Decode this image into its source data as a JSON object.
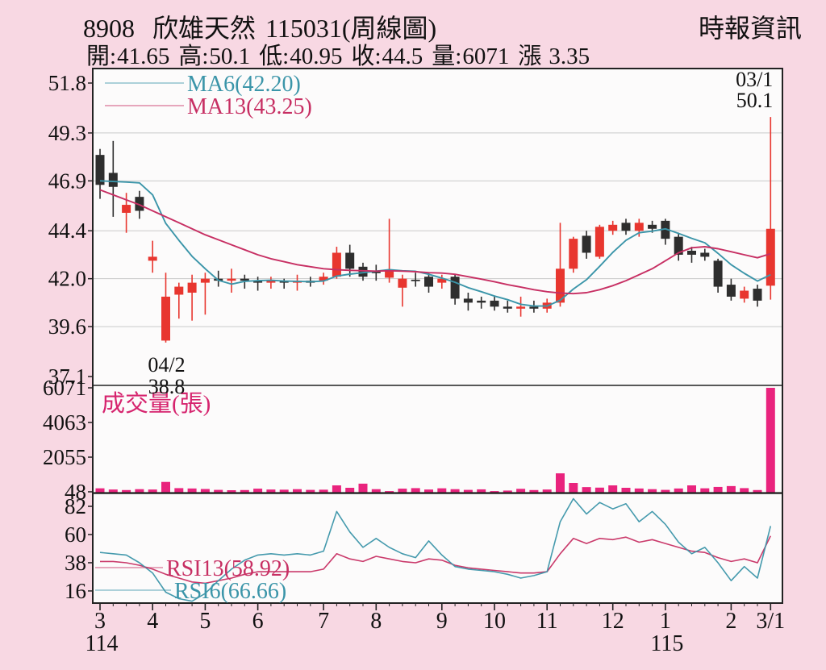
{
  "header": {
    "stock_id": "8908",
    "stock_name": "欣雄天然",
    "session_code": "115031",
    "chart_kind": "(周線圖)",
    "source": "時報資訊",
    "quote_fields": [
      {
        "label": "開:",
        "value": "41.65"
      },
      {
        "label": "高:",
        "value": "50.1"
      },
      {
        "label": "低:",
        "value": "40.95"
      },
      {
        "label": "收:",
        "value": "44.5"
      },
      {
        "label": "量:",
        "value": "6071"
      },
      {
        "label": "漲",
        "value": "3.35"
      }
    ]
  },
  "colors": {
    "background": "#f8d8e3",
    "panel": "#fcfbfb",
    "frame": "#222222",
    "grid": "#c9c9c9",
    "text": "#111111",
    "up": "#e8362f",
    "down": "#2e2e2e",
    "ma6": "#3b95a9",
    "ma13": "#c72f63",
    "volume_bar": "#e9237d",
    "volume_label": "#d6246e"
  },
  "chart_data": [
    {
      "type": "candlestick",
      "period": "weekly",
      "ylabel": "",
      "ylim": [
        37.1,
        51.8
      ],
      "y_ticks": [
        51.8,
        49.3,
        46.9,
        44.4,
        42.0,
        39.6,
        37.1
      ],
      "grid": true,
      "legend_position": "top-left",
      "candles": [
        [
          48.2,
          48.5,
          46.0,
          46.7
        ],
        [
          47.3,
          48.9,
          45.1,
          46.6
        ],
        [
          45.3,
          46.3,
          44.3,
          45.7
        ],
        [
          46.1,
          46.4,
          45.0,
          45.4
        ],
        [
          42.9,
          43.9,
          42.3,
          43.1
        ],
        [
          38.9,
          42.3,
          38.8,
          41.1
        ],
        [
          41.2,
          41.8,
          40.0,
          41.6
        ],
        [
          41.3,
          42.2,
          39.9,
          41.8
        ],
        [
          41.8,
          42.3,
          40.2,
          42.0
        ],
        [
          42.0,
          42.4,
          41.6,
          41.9
        ],
        [
          41.9,
          42.5,
          41.3,
          42.0
        ],
        [
          42.0,
          42.2,
          41.5,
          41.9
        ],
        [
          41.9,
          42.1,
          41.4,
          41.8
        ],
        [
          41.8,
          42.1,
          41.5,
          41.9
        ],
        [
          41.9,
          42.0,
          41.5,
          41.8
        ],
        [
          41.8,
          42.2,
          41.4,
          41.9
        ],
        [
          41.9,
          42.1,
          41.6,
          41.8
        ],
        [
          41.9,
          42.3,
          41.7,
          42.1
        ],
        [
          42.1,
          43.6,
          42.0,
          43.3
        ],
        [
          43.3,
          43.7,
          42.1,
          42.5
        ],
        [
          42.6,
          42.8,
          41.9,
          42.1
        ],
        [
          42.35,
          42.7,
          41.9,
          42.3
        ],
        [
          42.05,
          45.0,
          41.8,
          42.4
        ],
        [
          41.55,
          42.2,
          40.6,
          42.0
        ],
        [
          41.95,
          42.3,
          41.6,
          41.9
        ],
        [
          42.1,
          42.3,
          41.3,
          41.6
        ],
        [
          41.8,
          42.2,
          41.5,
          42.0
        ],
        [
          42.1,
          42.2,
          40.7,
          41.0
        ],
        [
          41.0,
          41.3,
          40.4,
          40.8
        ],
        [
          40.9,
          41.1,
          40.5,
          40.8
        ],
        [
          40.9,
          41.1,
          40.4,
          40.6
        ],
        [
          40.6,
          40.9,
          40.3,
          40.5
        ],
        [
          40.5,
          41.1,
          40.1,
          40.6
        ],
        [
          40.6,
          40.9,
          40.3,
          40.5
        ],
        [
          40.5,
          41.0,
          40.3,
          40.8
        ],
        [
          40.8,
          44.8,
          40.6,
          42.5
        ],
        [
          42.5,
          44.1,
          42.3,
          44.0
        ],
        [
          44.15,
          44.4,
          43.0,
          43.3
        ],
        [
          43.1,
          44.7,
          43.0,
          44.6
        ],
        [
          44.4,
          44.9,
          44.2,
          44.7
        ],
        [
          44.8,
          45.0,
          44.2,
          44.4
        ],
        [
          44.4,
          45.0,
          44.1,
          44.8
        ],
        [
          44.7,
          44.9,
          44.3,
          44.5
        ],
        [
          44.9,
          45.0,
          43.7,
          44.0
        ],
        [
          44.1,
          44.3,
          42.9,
          43.2
        ],
        [
          43.4,
          43.6,
          42.8,
          43.2
        ],
        [
          43.3,
          43.5,
          42.9,
          43.1
        ],
        [
          42.9,
          43.0,
          41.3,
          41.6
        ],
        [
          41.7,
          42.0,
          40.9,
          41.1
        ],
        [
          41.0,
          41.6,
          40.8,
          41.4
        ],
        [
          41.5,
          41.7,
          40.6,
          40.9
        ],
        [
          41.65,
          50.1,
          40.95,
          44.5
        ]
      ],
      "ma_series": [
        {
          "name": "MA6(42.20)",
          "color_key": "ma6",
          "values": [
            46.9,
            46.87,
            46.84,
            46.8,
            46.2,
            44.77,
            43.92,
            43.12,
            42.5,
            41.92,
            41.73,
            41.87,
            41.9,
            41.92,
            41.88,
            41.87,
            41.85,
            41.88,
            42.13,
            42.23,
            42.3,
            42.38,
            42.45,
            42.4,
            42.37,
            42.22,
            42.03,
            41.82,
            41.55,
            41.35,
            41.13,
            40.95,
            40.72,
            40.63,
            40.63,
            40.92,
            41.48,
            41.95,
            42.62,
            43.32,
            43.92,
            44.3,
            44.38,
            44.5,
            44.27,
            44.02,
            43.8,
            43.27,
            42.7,
            42.27,
            41.88,
            42.2
          ]
        },
        {
          "name": "MA13(43.25)",
          "color_key": "ma13",
          "values": [
            46.45,
            46.2,
            45.95,
            45.7,
            45.4,
            45.1,
            44.8,
            44.5,
            44.2,
            43.95,
            43.7,
            43.45,
            43.2,
            43.0,
            42.85,
            42.7,
            42.6,
            42.5,
            42.45,
            42.42,
            42.4,
            42.38,
            42.4,
            42.38,
            42.35,
            42.3,
            42.28,
            42.22,
            42.1,
            41.98,
            41.85,
            41.7,
            41.58,
            41.45,
            41.35,
            41.28,
            41.25,
            41.3,
            41.45,
            41.65,
            41.9,
            42.2,
            42.5,
            42.9,
            43.3,
            43.55,
            43.6,
            43.5,
            43.35,
            43.2,
            43.05,
            43.25
          ]
        }
      ],
      "x_month_ticks": [
        {
          "label": "3",
          "week": 0,
          "year_label": "114"
        },
        {
          "label": "4",
          "week": 4
        },
        {
          "label": "5",
          "week": 8
        },
        {
          "label": "6",
          "week": 12
        },
        {
          "label": "7",
          "week": 17
        },
        {
          "label": "8",
          "week": 21
        },
        {
          "label": "9",
          "week": 26
        },
        {
          "label": "10",
          "week": 30
        },
        {
          "label": "11",
          "week": 34
        },
        {
          "label": "12",
          "week": 39
        },
        {
          "label": "1",
          "week": 43,
          "year_label": "115"
        },
        {
          "label": "2",
          "week": 48
        },
        {
          "label": "3/1",
          "week": 51
        }
      ],
      "annotations": [
        {
          "lines": [
            "03/1",
            "50.1"
          ],
          "week": 51,
          "placement": "top-right"
        },
        {
          "lines": [
            "04/2",
            "38.8"
          ],
          "week": 5,
          "placement": "below-low"
        }
      ]
    },
    {
      "type": "bar",
      "name": "成交量(張)",
      "y_ticks": [
        6071,
        4063,
        2055,
        48
      ],
      "ylim": [
        0,
        6071
      ],
      "values": [
        250,
        180,
        150,
        200,
        180,
        620,
        260,
        240,
        210,
        160,
        140,
        150,
        230,
        180,
        170,
        200,
        160,
        170,
        420,
        280,
        520,
        200,
        90,
        230,
        260,
        180,
        250,
        200,
        160,
        190,
        90,
        120,
        220,
        150,
        180,
        1117,
        560,
        320,
        290,
        420,
        280,
        240,
        200,
        160,
        240,
        420,
        250,
        330,
        380,
        260,
        150,
        6071
      ]
    },
    {
      "type": "line",
      "name": "RSI",
      "y_ticks": [
        82,
        60,
        38,
        16
      ],
      "ylim": [
        0,
        100
      ],
      "series": [
        {
          "name": "RSI13(58.92)",
          "color_key": "ma13",
          "values": [
            39,
            39,
            38,
            36,
            33,
            29,
            26,
            23,
            22,
            24,
            26,
            29,
            31,
            31,
            31,
            31,
            31,
            33,
            45,
            41,
            39,
            43,
            41,
            39,
            38,
            41,
            40,
            36,
            34,
            33,
            32,
            31,
            30,
            30,
            31,
            45,
            57,
            53,
            57,
            56,
            58,
            54,
            56,
            53,
            50,
            47,
            46,
            42,
            39,
            41,
            38,
            58.92
          ]
        },
        {
          "name": "RSI6(66.66)",
          "color_key": "ma6",
          "values": [
            46,
            45,
            44,
            38,
            30,
            15,
            10,
            8,
            14,
            24,
            33,
            40,
            44,
            45,
            44,
            45,
            44,
            47,
            78,
            62,
            50,
            57,
            50,
            45,
            42,
            55,
            44,
            35,
            33,
            32,
            31,
            29,
            26,
            28,
            31,
            70,
            88,
            76,
            85,
            80,
            84,
            70,
            78,
            68,
            54,
            45,
            50,
            38,
            24,
            35,
            26,
            66.66
          ]
        }
      ]
    }
  ]
}
